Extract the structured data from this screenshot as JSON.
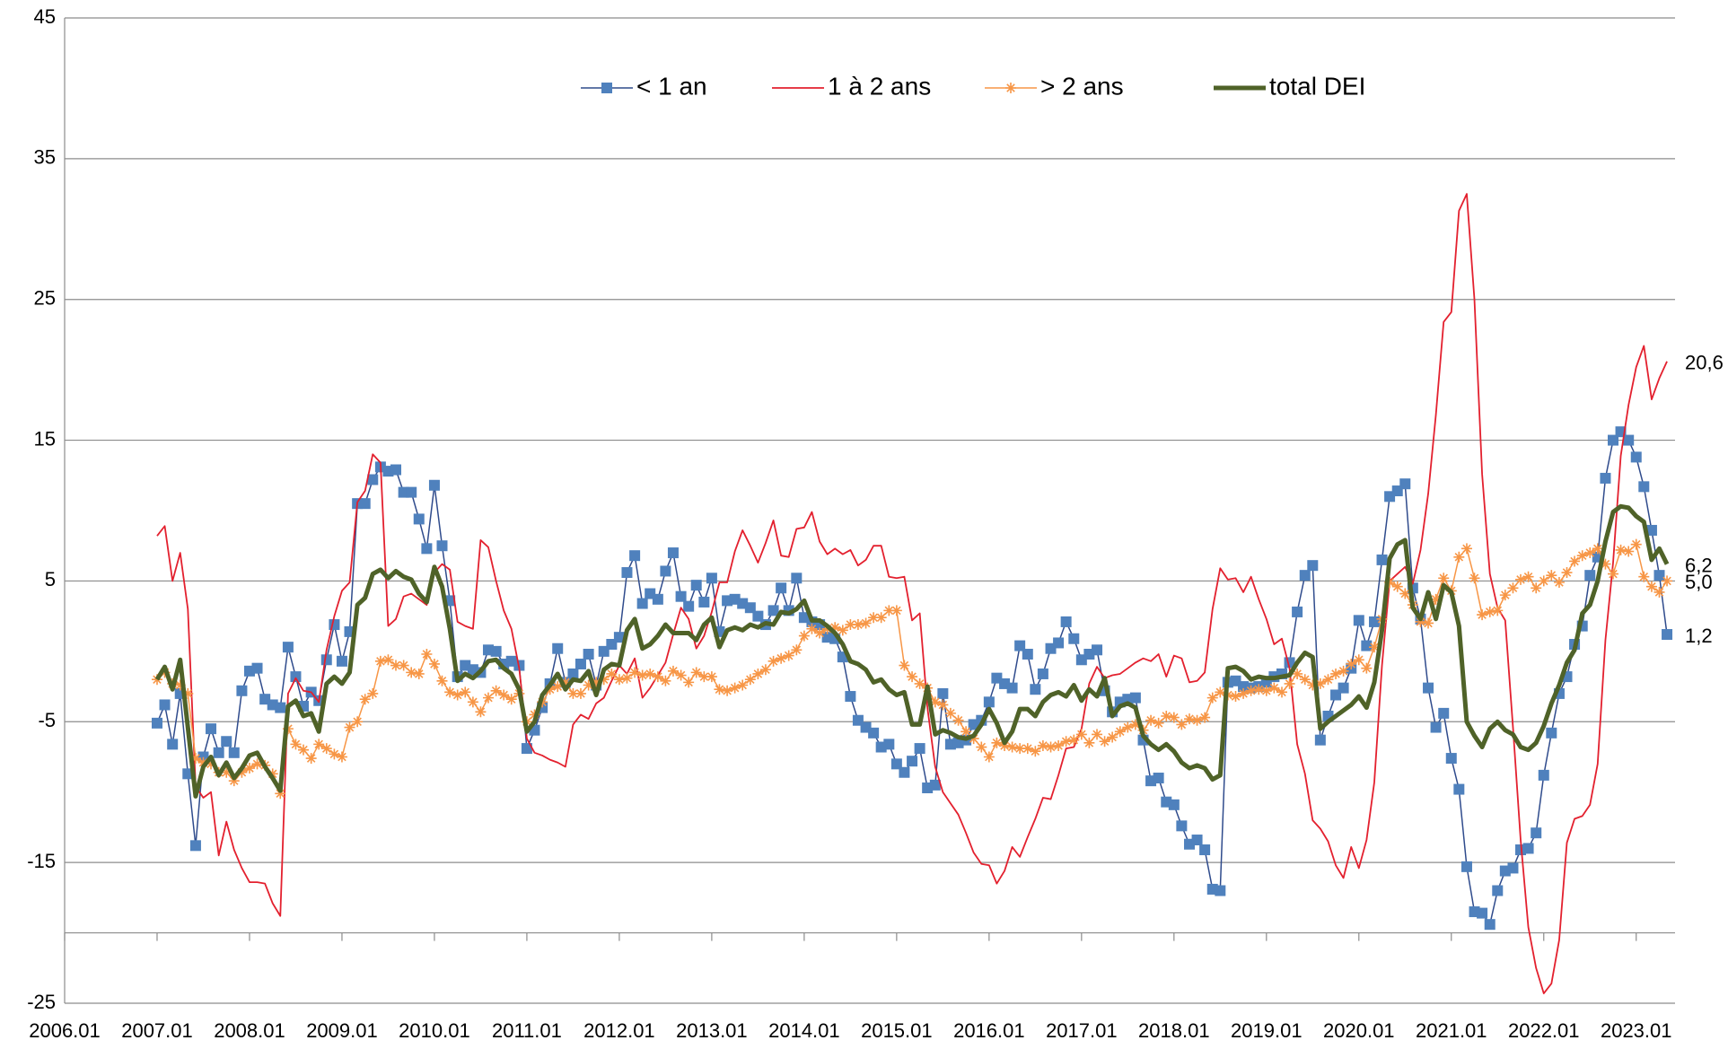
{
  "chart_data": {
    "type": "line",
    "x": [
      2007,
      2007.083,
      2007.167,
      2007.25,
      2007.333,
      2007.417,
      2007.5,
      2007.583,
      2007.667,
      2007.75,
      2007.833,
      2007.917,
      2008,
      2008.083,
      2008.167,
      2008.25,
      2008.333,
      2008.417,
      2008.5,
      2008.583,
      2008.667,
      2008.75,
      2008.833,
      2008.917,
      2009,
      2009.083,
      2009.167,
      2009.25,
      2009.333,
      2009.417,
      2009.5,
      2009.583,
      2009.667,
      2009.75,
      2009.833,
      2009.917,
      2010,
      2010.083,
      2010.167,
      2010.25,
      2010.333,
      2010.417,
      2010.5,
      2010.583,
      2010.667,
      2010.75,
      2010.833,
      2010.917,
      2011,
      2011.083,
      2011.167,
      2011.25,
      2011.333,
      2011.417,
      2011.5,
      2011.583,
      2011.667,
      2011.75,
      2011.833,
      2011.917,
      2012,
      2012.083,
      2012.167,
      2012.25,
      2012.333,
      2012.417,
      2012.5,
      2012.583,
      2012.667,
      2012.75,
      2012.833,
      2012.917,
      2013,
      2013.083,
      2013.167,
      2013.25,
      2013.333,
      2013.417,
      2013.5,
      2013.583,
      2013.667,
      2013.75,
      2013.833,
      2013.917,
      2014,
      2014.083,
      2014.167,
      2014.25,
      2014.333,
      2014.417,
      2014.5,
      2014.583,
      2014.667,
      2014.75,
      2014.833,
      2014.917,
      2015,
      2015.083,
      2015.167,
      2015.25,
      2015.333,
      2015.417,
      2015.5,
      2015.583,
      2015.667,
      2015.75,
      2015.833,
      2015.917,
      2016,
      2016.083,
      2016.167,
      2016.25,
      2016.333,
      2016.417,
      2016.5,
      2016.583,
      2016.667,
      2016.75,
      2016.833,
      2016.917,
      2017,
      2017.083,
      2017.167,
      2017.25,
      2017.333,
      2017.417,
      2017.5,
      2017.583,
      2017.667,
      2017.75,
      2017.833,
      2017.917,
      2018,
      2018.083,
      2018.167,
      2018.25,
      2018.333,
      2018.417,
      2018.5,
      2018.583,
      2018.667,
      2018.75,
      2018.833,
      2018.917,
      2019,
      2019.083,
      2019.167,
      2019.25,
      2019.333,
      2019.417,
      2019.5,
      2019.583,
      2019.667,
      2019.75,
      2019.833,
      2019.917,
      2020,
      2020.083,
      2020.167,
      2020.25,
      2020.333,
      2020.417,
      2020.5,
      2020.583,
      2020.667,
      2020.75,
      2020.833,
      2020.917,
      2021,
      2021.083,
      2021.167,
      2021.25,
      2021.333,
      2021.417,
      2021.5,
      2021.583,
      2021.667,
      2021.75,
      2021.833,
      2021.917,
      2022,
      2022.083,
      2022.167,
      2022.25,
      2022.333,
      2022.417,
      2022.5,
      2022.583,
      2022.667,
      2022.75,
      2022.833,
      2022.917,
      2023,
      2023.083,
      2023.167,
      2023.25,
      2023.333
    ],
    "series": [
      {
        "name": "< 1 an",
        "color": "#2f4b8c",
        "marker_color": "#4f81bd",
        "marker": "square",
        "width": 1.5,
        "values": [
          -5.1,
          -3.8,
          -6.6,
          -3.0,
          -8.7,
          -13.8,
          -7.5,
          -5.5,
          -7.2,
          -6.4,
          -7.2,
          -2.8,
          -1.4,
          -1.2,
          -3.4,
          -3.8,
          -4.0,
          0.3,
          -1.8,
          -3.9,
          -2.9,
          -3.5,
          -0.6,
          1.9,
          -0.7,
          1.4,
          10.5,
          10.5,
          12.2,
          13.1,
          12.8,
          12.9,
          11.3,
          11.3,
          9.4,
          7.3,
          11.8,
          7.5,
          3.6,
          -1.8,
          -1.0,
          -1.3,
          -1.5,
          0.1,
          0.0,
          -0.9,
          -0.7,
          -1.0,
          -6.9,
          -5.6,
          -4.0,
          -2.3,
          0.2,
          -2.2,
          -1.6,
          -0.9,
          -0.2,
          -2.4,
          0.0,
          0.5,
          1.0,
          5.6,
          6.8,
          3.4,
          4.1,
          3.7,
          5.7,
          7.0,
          3.9,
          3.2,
          4.7,
          3.5,
          5.2,
          1.4,
          3.6,
          3.7,
          3.4,
          3.1,
          2.5,
          1.9,
          2.9,
          4.5,
          2.9,
          5.2,
          2.4,
          2.1,
          1.9,
          1.0,
          0.9,
          -0.4,
          -3.2,
          -4.9,
          -5.4,
          -5.8,
          -6.8,
          -6.6,
          -8.0,
          -8.6,
          -7.8,
          -6.9,
          -9.7,
          -9.5,
          -3.0,
          -6.6,
          -6.5,
          -6.3,
          -5.2,
          -4.9,
          -3.6,
          -1.9,
          -2.3,
          -2.6,
          0.4,
          -0.2,
          -2.7,
          -1.6,
          0.2,
          0.6,
          2.1,
          0.9,
          -0.6,
          -0.2,
          0.1,
          -2.8,
          -4.3,
          -3.6,
          -3.4,
          -3.3,
          -6.3,
          -9.2,
          -9.0,
          -10.7,
          -10.9,
          -12.4,
          -13.7,
          -13.4,
          -14.1,
          -16.9,
          -17.0,
          -2.2,
          -2.1,
          -2.5,
          -2.6,
          -2.5,
          -2.2,
          -1.8,
          -1.6,
          -0.8,
          2.8,
          5.4,
          6.1,
          -6.3,
          -4.6,
          -3.1,
          -2.6,
          -1.2,
          2.2,
          0.4,
          2.1,
          6.5,
          11.0,
          11.4,
          11.9,
          4.5,
          2.3,
          -2.6,
          -5.4,
          -4.4,
          -7.6,
          -9.8,
          -15.3,
          -18.5,
          -18.6,
          -19.4,
          -17.0,
          -15.6,
          -15.4,
          -14.1,
          -14.0,
          -12.9,
          -8.8,
          -5.8,
          -3.0,
          -1.8,
          0.5,
          1.8,
          5.4,
          6.7,
          12.3,
          15.0,
          15.6,
          15.0,
          13.8,
          11.7,
          8.6,
          5.4,
          1.2
        ],
        "end_label": "1,2"
      },
      {
        "name": "1 à 2 ans",
        "color": "#e3202e",
        "marker": "none",
        "width": 1.8,
        "values": [
          8.2,
          8.9,
          5.0,
          7.0,
          3.0,
          -9.6,
          -10.4,
          -10.0,
          -14.5,
          -12.1,
          -14.1,
          -15.4,
          -16.4,
          -16.4,
          -16.5,
          -17.9,
          -18.8,
          -3.0,
          -1.9,
          -2.8,
          -2.9,
          -3.6,
          0.1,
          2.5,
          4.3,
          4.9,
          10.6,
          11.4,
          14.0,
          13.4,
          1.8,
          2.3,
          3.9,
          4.1,
          3.7,
          3.3,
          5.6,
          6.2,
          5.8,
          2.1,
          1.8,
          1.6,
          7.9,
          7.4,
          5.0,
          2.9,
          1.6,
          -1.2,
          -6.2,
          -7.2,
          -7.4,
          -7.7,
          -7.9,
          -8.2,
          -5.2,
          -4.5,
          -4.8,
          -3.7,
          -3.3,
          -2.1,
          -1.0,
          -1.6,
          -0.5,
          -3.3,
          -2.6,
          -1.7,
          -0.8,
          1.2,
          3.1,
          2.3,
          0.2,
          1.1,
          2.8,
          4.9,
          4.9,
          7.1,
          8.6,
          7.5,
          6.3,
          7.7,
          9.3,
          6.8,
          6.7,
          8.7,
          8.8,
          9.9,
          7.8,
          6.9,
          7.3,
          6.9,
          7.2,
          6.1,
          6.5,
          7.5,
          7.5,
          5.3,
          5.2,
          5.3,
          2.2,
          2.7,
          -4.0,
          -8.2,
          -10.0,
          -10.8,
          -11.6,
          -12.9,
          -14.3,
          -15.1,
          -15.2,
          -16.5,
          -15.6,
          -13.9,
          -14.6,
          -13.2,
          -11.9,
          -10.4,
          -10.5,
          -8.8,
          -6.9,
          -6.8,
          -5.5,
          -2.3,
          -1.1,
          -1.9,
          -1.7,
          -1.6,
          -1.2,
          -0.8,
          -0.5,
          -0.7,
          -0.2,
          -1.8,
          -0.3,
          -0.5,
          -2.2,
          -2.1,
          -1.5,
          3.0,
          5.9,
          5.1,
          5.2,
          4.2,
          5.3,
          3.7,
          2.3,
          0.5,
          0.9,
          -1.2,
          -6.6,
          -8.7,
          -12.0,
          -12.6,
          -13.5,
          -15.2,
          -16.1,
          -13.9,
          -15.4,
          -13.4,
          -9.3,
          -1.0,
          5.0,
          5.5,
          6.0,
          4.8,
          7.2,
          11.2,
          16.8,
          23.4,
          24.1,
          31.3,
          32.5,
          25.0,
          12.6,
          5.5,
          3.1,
          2.2,
          -5.4,
          -13.4,
          -19.6,
          -22.5,
          -24.3,
          -23.6,
          -20.5,
          -13.6,
          -11.9,
          -11.7,
          -10.9,
          -8.0,
          0.8,
          6.3,
          13.9,
          17.5,
          20.2,
          21.7,
          17.9,
          19.4,
          20.6
        ],
        "end_label": "20,6"
      },
      {
        "name": "> 2 ans",
        "color": "#f79646",
        "marker_color": "#f79646",
        "marker": "asterisk",
        "width": 1.5,
        "values": [
          -2.0,
          -1.5,
          -2.3,
          -2.4,
          -3.0,
          -7.6,
          -7.9,
          -8.0,
          -8.6,
          -8.6,
          -9.2,
          -8.6,
          -8.3,
          -8.0,
          -8.1,
          -8.7,
          -10.1,
          -5.5,
          -6.6,
          -7.0,
          -7.6,
          -6.6,
          -6.9,
          -7.3,
          -7.5,
          -5.4,
          -5.0,
          -3.4,
          -3.0,
          -0.7,
          -0.6,
          -1.0,
          -1.0,
          -1.5,
          -1.6,
          -0.2,
          -0.9,
          -2.1,
          -2.9,
          -3.1,
          -2.9,
          -3.6,
          -4.3,
          -3.3,
          -2.8,
          -3.1,
          -3.4,
          -3.0,
          -5.0,
          -4.5,
          -3.6,
          -2.7,
          -2.5,
          -2.2,
          -3.0,
          -3.0,
          -2.4,
          -2.2,
          -2.0,
          -1.6,
          -2.0,
          -1.9,
          -1.5,
          -1.7,
          -1.6,
          -1.8,
          -2.1,
          -1.4,
          -1.7,
          -2.2,
          -1.5,
          -1.8,
          -1.8,
          -2.7,
          -2.8,
          -2.6,
          -2.4,
          -2.0,
          -1.6,
          -1.3,
          -0.7,
          -0.5,
          -0.3,
          0.1,
          1.1,
          1.6,
          1.3,
          1.6,
          1.7,
          1.5,
          1.9,
          1.9,
          2.0,
          2.4,
          2.4,
          2.9,
          2.9,
          -1.0,
          -1.8,
          -2.3,
          -2.6,
          -3.6,
          -3.8,
          -4.4,
          -4.9,
          -5.7,
          -6.2,
          -6.8,
          -7.5,
          -6.5,
          -6.7,
          -6.8,
          -6.9,
          -6.9,
          -7.1,
          -6.7,
          -6.8,
          -6.7,
          -6.4,
          -6.3,
          -5.9,
          -6.5,
          -5.9,
          -6.4,
          -6.1,
          -5.7,
          -5.4,
          -5.2,
          -5.6,
          -4.9,
          -5.1,
          -4.6,
          -4.7,
          -5.2,
          -4.8,
          -4.9,
          -4.7,
          -3.3,
          -2.9,
          -3.1,
          -3.2,
          -3.0,
          -2.8,
          -2.7,
          -2.8,
          -2.6,
          -2.9,
          -2.3,
          -1.6,
          -2.0,
          -2.4,
          -2.3,
          -2.0,
          -1.6,
          -1.4,
          -0.9,
          -0.6,
          -1.2,
          0.3,
          2.3,
          4.9,
          4.6,
          4.1,
          3.3,
          2.1,
          2.0,
          3.7,
          5.2,
          4.3,
          6.7,
          7.3,
          5.2,
          2.6,
          2.8,
          2.9,
          4.0,
          4.5,
          5.1,
          5.3,
          4.5,
          5.0,
          5.4,
          4.9,
          5.6,
          6.4,
          6.8,
          7.0,
          7.3,
          6.2,
          5.5,
          7.2,
          7.1,
          7.6,
          5.3,
          4.6,
          4.2,
          5.0
        ],
        "end_label": "5,0"
      },
      {
        "name": "total DEI",
        "color": "#4f6228",
        "marker": "none",
        "width": 5,
        "values": [
          -2.0,
          -1.1,
          -2.7,
          -0.6,
          -5.4,
          -10.3,
          -8.2,
          -7.5,
          -8.8,
          -7.9,
          -9.0,
          -8.3,
          -7.4,
          -7.2,
          -8.2,
          -9.0,
          -9.9,
          -3.9,
          -3.5,
          -4.6,
          -4.4,
          -5.7,
          -2.3,
          -1.8,
          -2.3,
          -1.5,
          3.3,
          3.8,
          5.5,
          5.8,
          5.2,
          5.7,
          5.3,
          5.1,
          4.1,
          3.5,
          6.0,
          4.6,
          1.6,
          -2.1,
          -1.6,
          -1.9,
          -1.4,
          -0.7,
          -0.6,
          -1.2,
          -1.6,
          -2.7,
          -5.7,
          -5.0,
          -3.1,
          -2.4,
          -1.6,
          -2.7,
          -2.0,
          -2.1,
          -1.4,
          -3.1,
          -1.3,
          -0.9,
          -1.0,
          1.5,
          2.3,
          0.2,
          0.5,
          1.1,
          1.9,
          1.3,
          1.3,
          1.3,
          0.8,
          1.9,
          2.4,
          0.3,
          1.5,
          1.7,
          1.5,
          1.9,
          1.7,
          2.0,
          1.9,
          2.8,
          2.7,
          3.0,
          3.6,
          2.2,
          2.2,
          1.8,
          1.3,
          0.5,
          -0.7,
          -0.9,
          -1.3,
          -2.2,
          -2.0,
          -2.7,
          -3.1,
          -2.9,
          -5.2,
          -5.2,
          -2.5,
          -5.9,
          -5.6,
          -5.8,
          -6.1,
          -6.2,
          -6.0,
          -5.2,
          -4.1,
          -5.1,
          -6.5,
          -5.7,
          -4.1,
          -4.1,
          -4.6,
          -3.6,
          -3.1,
          -2.9,
          -3.2,
          -2.4,
          -3.5,
          -2.7,
          -3.2,
          -1.9,
          -4.6,
          -3.9,
          -3.7,
          -4.0,
          -6.0,
          -6.6,
          -7.0,
          -6.6,
          -7.1,
          -7.9,
          -8.3,
          -8.1,
          -8.3,
          -9.1,
          -8.8,
          -1.2,
          -1.1,
          -1.4,
          -2.0,
          -1.8,
          -1.9,
          -1.9,
          -1.8,
          -1.7,
          -0.8,
          -0.1,
          -0.4,
          -5.5,
          -5.0,
          -4.6,
          -4.2,
          -3.8,
          -3.2,
          -4.0,
          -2.2,
          1.5,
          6.6,
          7.6,
          7.9,
          3.1,
          2.3,
          4.2,
          2.3,
          4.7,
          4.2,
          1.8,
          -5.0,
          -6.0,
          -6.8,
          -5.5,
          -5.0,
          -5.6,
          -5.9,
          -6.8,
          -7.0,
          -6.5,
          -5.3,
          -3.7,
          -2.4,
          -0.8,
          0.1,
          2.7,
          3.3,
          5.0,
          7.8,
          9.9,
          10.3,
          10.2,
          9.6,
          9.2,
          6.5,
          7.3,
          6.2
        ],
        "end_label": "6,2"
      }
    ],
    "xlim": [
      2006,
      2023.42
    ],
    "xticks": [
      {
        "value": 2006,
        "label": "2006.01"
      },
      {
        "value": 2007,
        "label": "2007.01"
      },
      {
        "value": 2008,
        "label": "2008.01"
      },
      {
        "value": 2009,
        "label": "2009.01"
      },
      {
        "value": 2010,
        "label": "2010.01"
      },
      {
        "value": 2011,
        "label": "2011.01"
      },
      {
        "value": 2012,
        "label": "2012.01"
      },
      {
        "value": 2013,
        "label": "2013.01"
      },
      {
        "value": 2014,
        "label": "2014.01"
      },
      {
        "value": 2015,
        "label": "2015.01"
      },
      {
        "value": 2016,
        "label": "2016.01"
      },
      {
        "value": 2017,
        "label": "2017.01"
      },
      {
        "value": 2018,
        "label": "2018.01"
      },
      {
        "value": 2019,
        "label": "2019.01"
      },
      {
        "value": 2020,
        "label": "2020.01"
      },
      {
        "value": 2021,
        "label": "2021.01"
      },
      {
        "value": 2022,
        "label": "2022.01"
      },
      {
        "value": 2023,
        "label": "2023.01"
      }
    ],
    "ylim": [
      -25,
      45
    ],
    "yticks": [
      -25,
      -15,
      -5,
      5,
      15,
      25,
      35,
      45
    ],
    "x_axis_at": -20,
    "grid": true,
    "legend": "top"
  }
}
